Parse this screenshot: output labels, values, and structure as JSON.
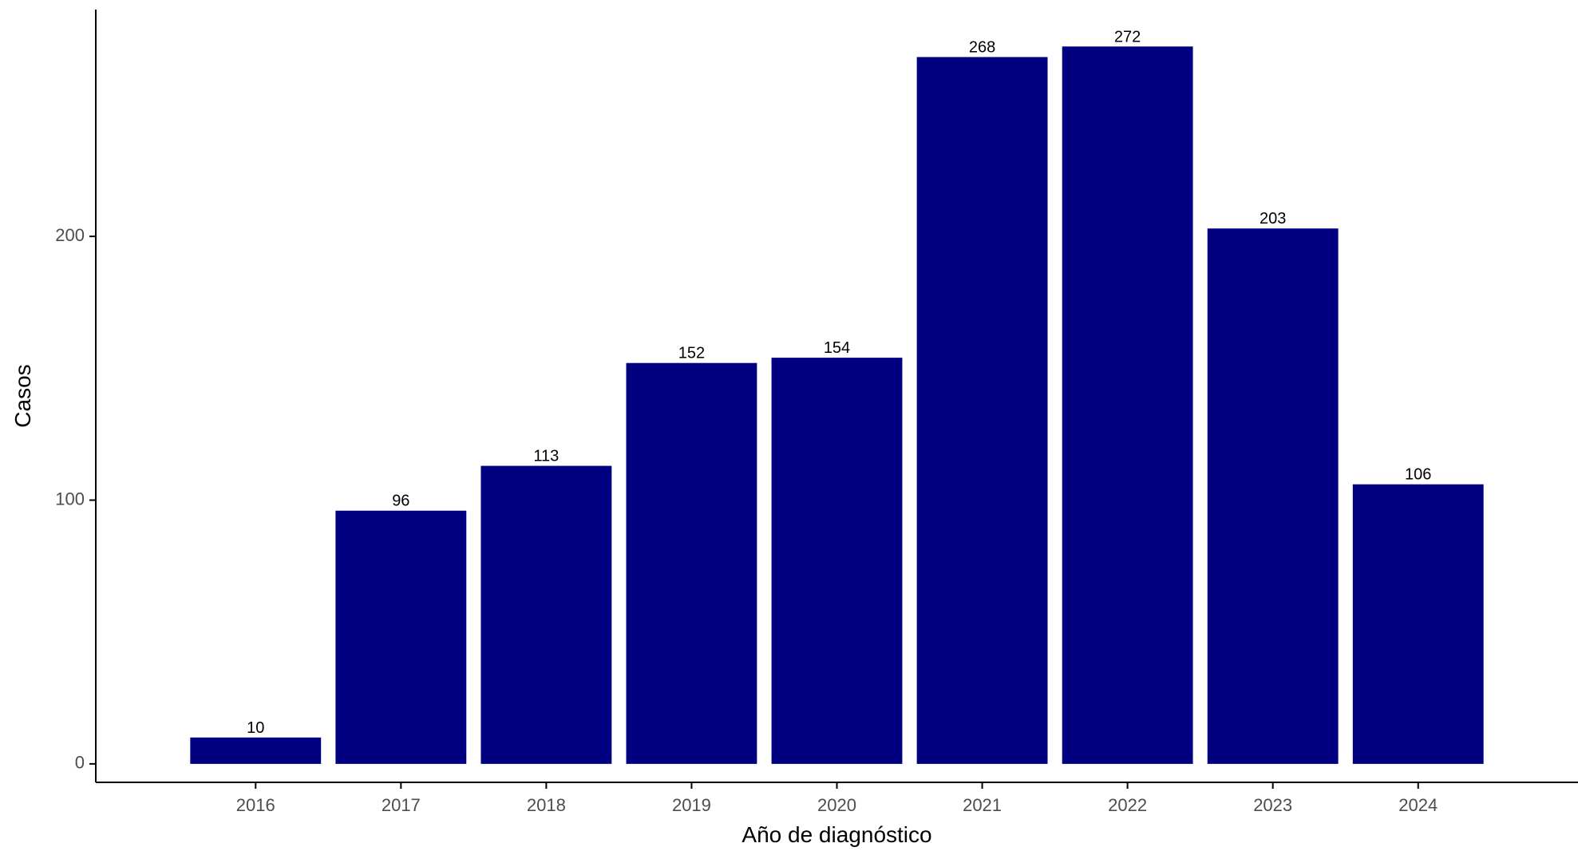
{
  "chart_data": {
    "type": "bar",
    "categories": [
      "2016",
      "2017",
      "2018",
      "2019",
      "2020",
      "2021",
      "2022",
      "2023",
      "2024"
    ],
    "values": [
      10,
      96,
      113,
      152,
      154,
      268,
      272,
      203,
      106
    ],
    "data_labels": [
      "10",
      "96",
      "113",
      "152",
      "154",
      "268",
      "272",
      "203",
      "106"
    ],
    "title": "",
    "xlabel": "Año de diagnóstico",
    "ylabel": "Casos",
    "ylim": [
      -7,
      286
    ],
    "yticks": [
      0,
      100,
      200
    ],
    "ytick_labels": [
      "0",
      "100",
      "200"
    ],
    "grid": false,
    "legend": "none",
    "colors": {
      "bar": "#000080",
      "axis": "#000000",
      "tick_text": "#4d4d4d",
      "label_text": "#000000",
      "data_label_text": "#000000"
    }
  }
}
